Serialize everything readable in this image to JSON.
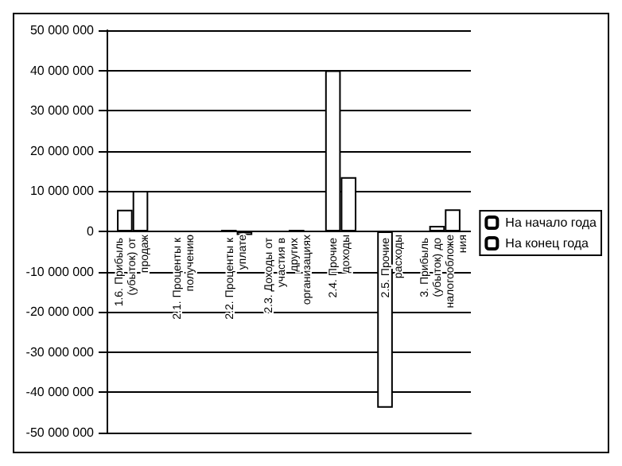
{
  "chart_data": {
    "type": "bar",
    "categories": [
      "1.6. Прибыль (убыток) от продаж",
      "2.1. Проценты к получению",
      "2.2. Проценты к уплате",
      "2.3. Доходы от участия в других организациях",
      "2.4. Прочие доходы",
      "2.5. Прочие расходы",
      "3. Прибыль (убыток) до налогообложения"
    ],
    "series": [
      {
        "name": "На начало года",
        "color": "#ffffff",
        "values": [
          5400000,
          null,
          400000,
          null,
          40000000,
          -43800000,
          1400000
        ]
      },
      {
        "name": "На конец года",
        "color": "#ffffff",
        "values": [
          10100000,
          null,
          -900000,
          400000,
          13500000,
          null,
          5500000
        ]
      }
    ],
    "ylim": [
      -50000000,
      50000000
    ],
    "yticks": [
      -50000000,
      -40000000,
      -30000000,
      -20000000,
      -10000000,
      0,
      10000000,
      20000000,
      30000000,
      40000000,
      50000000
    ],
    "grid": "y",
    "legend": "right"
  }
}
